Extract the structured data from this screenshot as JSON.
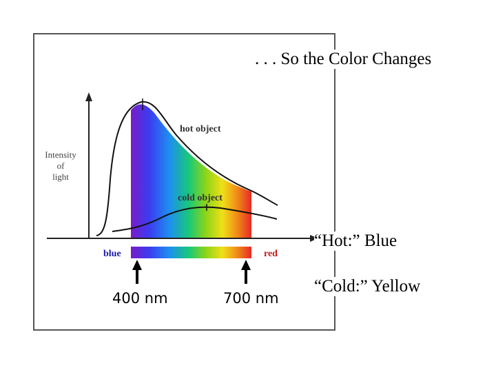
{
  "title": ". . . So the Color Changes",
  "diagram": {
    "y_label_lines": [
      "Intensity",
      "of",
      "light"
    ],
    "curve_labels": {
      "hot": "hot object",
      "cold": "cold object"
    },
    "scale_labels": {
      "left": "blue",
      "right": "red"
    },
    "wavelength_markers": [
      "400 nm",
      "700 nm"
    ]
  },
  "notes": {
    "hot": "“Hot:”  Blue",
    "cold": "“Cold:”  Yellow"
  },
  "colors": {
    "blue_label": "#1a1aa8",
    "red_label": "#c81818",
    "spectrum": [
      "#7a1cc8",
      "#3b3bf0",
      "#1e8ff0",
      "#18c878",
      "#8cd418",
      "#f0e018",
      "#f08c18",
      "#e82828"
    ]
  }
}
